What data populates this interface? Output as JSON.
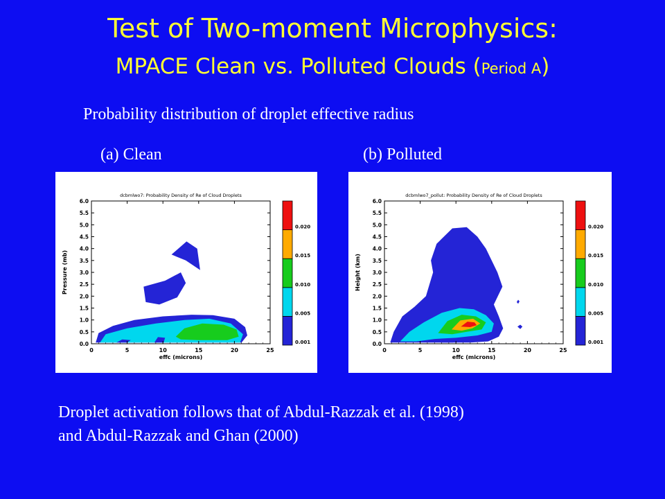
{
  "slide": {
    "title_line1": "Test of Two-moment Microphysics:",
    "title_line2": "MPACE Clean vs. Polluted Clouds (",
    "title_period": "Period A",
    "title_close": ")",
    "subtitle": "Probability distribution of droplet effective radius",
    "footnote_line1": "Droplet activation follows that of Abdul-Razzak  et al. (1998)",
    "footnote_line2": "and Abdul-Razzak  and Ghan (2000)"
  },
  "colors": {
    "background": "#0d0df2",
    "title": "#ffff33",
    "level_colors": [
      "#2424d6",
      "#00d7ee",
      "#17cc1d",
      "#ffaa00",
      "#ee1010"
    ]
  },
  "colorbar": {
    "labels": [
      "0.001",
      "0.005",
      "0.010",
      "0.015",
      "0.020"
    ]
  },
  "chart_data": [
    {
      "type": "heatmap",
      "panel_label": "(a) Clean",
      "title": "dcbmlwo7: Probability Density of Re of Cloud Droplets",
      "xlabel": "effc (microns)",
      "ylabel": "Pressure (mb)",
      "xlim": [
        0,
        25
      ],
      "ylim": [
        0,
        6
      ],
      "x_ticks": [
        "0",
        "5",
        "10",
        "15",
        "20",
        "25"
      ],
      "y_ticks": [
        "0.0",
        "0.5",
        "1.0",
        "1.5",
        "2.0",
        "2.5",
        "3.0",
        "3.5",
        "4.0",
        "4.5",
        "5.0",
        "5.5",
        "6.0"
      ],
      "contour_levels": [
        0.001,
        0.005,
        0.01,
        0.015,
        0.02
      ],
      "regions": [
        {
          "level": 0,
          "points": [
            [
              0.6,
              0.05
            ],
            [
              1,
              0.45
            ],
            [
              3,
              0.75
            ],
            [
              6,
              1.0
            ],
            [
              10,
              1.15
            ],
            [
              14,
              1.22
            ],
            [
              17,
              1.2
            ],
            [
              20,
              1.05
            ],
            [
              21.5,
              0.7
            ],
            [
              21.8,
              0.35
            ],
            [
              21,
              0.05
            ]
          ]
        },
        {
          "level": 0,
          "points": [
            [
              7.3,
              2.4
            ],
            [
              10.3,
              2.65
            ],
            [
              12.5,
              3.0
            ],
            [
              13.2,
              2.55
            ],
            [
              12,
              1.95
            ],
            [
              9.5,
              1.65
            ],
            [
              7.6,
              1.75
            ]
          ]
        },
        {
          "level": 0,
          "points": [
            [
              11.2,
              3.75
            ],
            [
              13.3,
              4.3
            ],
            [
              14.8,
              4.0
            ],
            [
              15.2,
              3.1
            ],
            [
              13.2,
              3.5
            ]
          ]
        },
        {
          "level": 1,
          "points": [
            [
              1.2,
              0.05
            ],
            [
              2,
              0.4
            ],
            [
              5,
              0.65
            ],
            [
              9,
              0.85
            ],
            [
              13,
              1.0
            ],
            [
              16.5,
              1.05
            ],
            [
              19.5,
              0.85
            ],
            [
              21.2,
              0.4
            ],
            [
              20.8,
              0.05
            ]
          ]
        },
        {
          "level": 2,
          "points": [
            [
              11.8,
              0.3
            ],
            [
              13,
              0.65
            ],
            [
              15.5,
              0.85
            ],
            [
              18.5,
              0.8
            ],
            [
              20.3,
              0.6
            ],
            [
              20.6,
              0.3
            ],
            [
              19,
              0.15
            ],
            [
              15,
              0.15
            ],
            [
              12.5,
              0.18
            ]
          ]
        },
        {
          "level": 0,
          "points": [
            [
              8.8,
              0.05
            ],
            [
              9.3,
              0.28
            ],
            [
              10.3,
              0.25
            ],
            [
              10.1,
              0.05
            ]
          ]
        },
        {
          "level": 0,
          "points": [
            [
              3.5,
              0.05
            ],
            [
              4.3,
              0.18
            ],
            [
              5.5,
              0.15
            ],
            [
              5,
              0.05
            ]
          ]
        }
      ]
    },
    {
      "type": "heatmap",
      "panel_label": "(b) Polluted",
      "title": "dcbmlwo7_pollut: Probability Density of Re of Cloud Droplets",
      "xlabel": "effc (microns)",
      "ylabel": "Height (km)",
      "xlim": [
        0,
        25
      ],
      "ylim": [
        0,
        6
      ],
      "x_ticks": [
        "0",
        "5",
        "10",
        "15",
        "20",
        "25"
      ],
      "y_ticks": [
        "0.0",
        "0.5",
        "1.0",
        "1.5",
        "2.0",
        "2.5",
        "3.0",
        "3.5",
        "4.0",
        "4.5",
        "5.0",
        "5.5",
        "6.0"
      ],
      "contour_levels": [
        0.001,
        0.005,
        0.01,
        0.015,
        0.02
      ],
      "regions": [
        {
          "level": 0,
          "points": [
            [
              0.8,
              0.05
            ],
            [
              1.3,
              0.5
            ],
            [
              2.5,
              1.15
            ],
            [
              4.2,
              1.55
            ],
            [
              5.8,
              2.0
            ],
            [
              6.3,
              2.5
            ],
            [
              6.8,
              3.0
            ],
            [
              6.5,
              3.5
            ],
            [
              7.3,
              4.2
            ],
            [
              9.5,
              4.85
            ],
            [
              11.5,
              4.9
            ],
            [
              13,
              4.5
            ],
            [
              14.2,
              4.0
            ],
            [
              15.8,
              3.0
            ],
            [
              16.5,
              2.4
            ],
            [
              15.3,
              1.65
            ],
            [
              16,
              1.15
            ],
            [
              16.6,
              0.65
            ],
            [
              16,
              0.3
            ],
            [
              14.5,
              0.1
            ],
            [
              12,
              0.05
            ]
          ]
        },
        {
          "level": 1,
          "points": [
            [
              2.2,
              0.1
            ],
            [
              3.5,
              0.5
            ],
            [
              5.5,
              0.9
            ],
            [
              8,
              1.3
            ],
            [
              10.5,
              1.5
            ],
            [
              12.5,
              1.45
            ],
            [
              14.2,
              1.2
            ],
            [
              15.3,
              0.85
            ],
            [
              15,
              0.5
            ],
            [
              13,
              0.35
            ],
            [
              10,
              0.25
            ],
            [
              7,
              0.2
            ],
            [
              4.5,
              0.1
            ]
          ]
        },
        {
          "level": 2,
          "points": [
            [
              7.5,
              0.45
            ],
            [
              8.8,
              0.95
            ],
            [
              10.8,
              1.22
            ],
            [
              12.8,
              1.15
            ],
            [
              14.2,
              0.9
            ],
            [
              13.6,
              0.6
            ],
            [
              11.5,
              0.5
            ],
            [
              9.5,
              0.4
            ]
          ]
        },
        {
          "level": 3,
          "points": [
            [
              9.4,
              0.6
            ],
            [
              10.6,
              0.98
            ],
            [
              12.4,
              1.05
            ],
            [
              13.4,
              0.85
            ],
            [
              12.3,
              0.65
            ],
            [
              10.8,
              0.55
            ]
          ]
        },
        {
          "level": 4,
          "points": [
            [
              10.7,
              0.72
            ],
            [
              11.6,
              0.93
            ],
            [
              12.6,
              0.9
            ],
            [
              12.9,
              0.78
            ],
            [
              12,
              0.7
            ]
          ]
        },
        {
          "level": 0,
          "points": [
            [
              7.8,
              0.05
            ],
            [
              8.1,
              0.2
            ],
            [
              9.4,
              0.22
            ],
            [
              9.6,
              0.05
            ]
          ]
        },
        {
          "level": 0,
          "points": [
            [
              18.6,
              0.72
            ],
            [
              19,
              0.8
            ],
            [
              19.3,
              0.72
            ],
            [
              19,
              0.62
            ]
          ]
        },
        {
          "level": 0,
          "points": [
            [
              18.5,
              1.75
            ],
            [
              18.7,
              1.85
            ],
            [
              18.9,
              1.78
            ],
            [
              18.7,
              1.68
            ]
          ]
        }
      ]
    }
  ]
}
